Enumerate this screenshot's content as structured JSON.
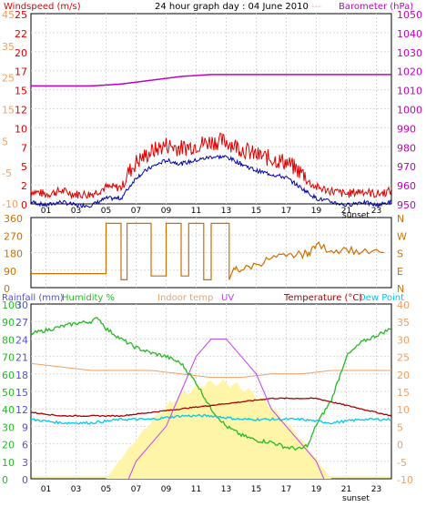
{
  "title": "24 hour graph day : 04 June 2010",
  "legend_windspeed": "Windspeed (m/s)",
  "legend_barometer": "Barometer (hPa)",
  "legend_rainfall": "Rainfall (mm)",
  "legend_humidity": "Humidity %",
  "legend_indoor": "Indoor temp",
  "legend_uv": "UV",
  "legend_temperature": "Temperature (°C)",
  "legend_dewpoint": "Dew Point",
  "sunset_label": "sunset",
  "hour_ticks": [
    "01",
    "03",
    "05",
    "07",
    "09",
    "11",
    "13",
    "15",
    "17",
    "19",
    "21",
    "23"
  ],
  "colors": {
    "windspeed": "#dd0000",
    "windgust": "#0000aa",
    "barometer": "#c000c0",
    "winddir": "#cc7000",
    "humidity": "#22bb22",
    "indoor": "#f0a060",
    "uv": "#c040f0",
    "temperature": "#aa0000",
    "dewpoint": "#00c8e8",
    "solar": "#fff5a8",
    "rain": "#5050d0"
  },
  "chart_data": [
    {
      "type": "line",
      "title": "24 hour graph day : 04 June 2010",
      "x_range": [
        0,
        24
      ],
      "y_left_label": "Windspeed (m/s)",
      "y_left_ticks_ms": [
        "25",
        "22",
        "20",
        "17",
        "15",
        "12",
        "10",
        "7",
        "5",
        "2",
        "0"
      ],
      "y_left_ticks_bft": [
        "45",
        "35",
        "25",
        "15",
        "5",
        "-5",
        "-10"
      ],
      "y_right_label": "Barometer (hPa)",
      "y_right_ticks": [
        "1050",
        "1040",
        "1030",
        "1020",
        "1010",
        "1000",
        "990",
        "980",
        "970",
        "960",
        "950"
      ],
      "barometer_ylim": [
        950,
        1050
      ],
      "windspeed_ylim": [
        -10,
        45
      ],
      "series": [
        {
          "name": "Windspeed (m/s)",
          "x": [
            0,
            1,
            2,
            3,
            4,
            5,
            6,
            7,
            8,
            9,
            10,
            11,
            12,
            13,
            14,
            15,
            16,
            17,
            18,
            19,
            20,
            21,
            22,
            23,
            24
          ],
          "values": [
            -7,
            -8,
            -7,
            -8,
            -8,
            -6,
            -6,
            0,
            3,
            5,
            4,
            5,
            6,
            6,
            4,
            2,
            1,
            0,
            -3,
            -6,
            -7,
            -8,
            -7,
            -8,
            -7
          ]
        },
        {
          "name": "Barometer (hPa)",
          "x": [
            0,
            2,
            4,
            6,
            8,
            10,
            12,
            14,
            16,
            18,
            20,
            22,
            24
          ],
          "values": [
            1012,
            1012,
            1012,
            1013,
            1015,
            1017,
            1018,
            1018,
            1018,
            1018,
            1018,
            1018,
            1018
          ]
        }
      ]
    },
    {
      "type": "line",
      "y_left_ticks": [
        "360",
        "270",
        "180",
        "90",
        "0"
      ],
      "y_right_ticks": [
        "N",
        "W",
        "S",
        "E",
        "N"
      ],
      "ylim": [
        0,
        360
      ],
      "series": [
        {
          "name": "Wind direction",
          "x": [
            0,
            4.5,
            5,
            5.6,
            6,
            6.4,
            7,
            8,
            9,
            9.5,
            10,
            10.5,
            11,
            11.5,
            12,
            12.5,
            13.2,
            13.5,
            14,
            15,
            16,
            17,
            18,
            18.5,
            19,
            20,
            21,
            22,
            23.5
          ],
          "values": [
            72,
            72,
            330,
            330,
            40,
            330,
            330,
            60,
            330,
            330,
            60,
            330,
            330,
            40,
            330,
            330,
            40,
            100,
            90,
            120,
            150,
            160,
            170,
            180,
            220,
            190,
            200,
            180,
            180
          ]
        }
      ]
    },
    {
      "type": "line",
      "x_range": [
        0,
        24
      ],
      "y_left_rain_ticks": [
        "30",
        "27",
        "24",
        "21",
        "18",
        "15",
        "12",
        "9",
        "6",
        "3",
        "0"
      ],
      "y_left_humidity_ticks": [
        "100",
        "90",
        "80",
        "70",
        "60",
        "50",
        "40",
        "30",
        "20",
        "10",
        "0"
      ],
      "y_right_temp_ticks": [
        "40",
        "35",
        "30",
        "25",
        "20",
        "15",
        "10",
        "5",
        "0",
        "-5",
        "-10"
      ],
      "humidity_ylim": [
        0,
        100
      ],
      "temperature_ylim": [
        -10,
        40
      ],
      "series": [
        {
          "name": "Humidity %",
          "x": [
            0,
            1,
            2,
            3,
            4,
            4.5,
            5,
            6,
            7,
            8,
            9,
            10,
            11,
            12,
            13,
            14,
            15,
            16,
            17,
            18,
            18.5,
            19,
            20,
            21,
            22,
            23,
            24
          ],
          "values": [
            83,
            85,
            87,
            89,
            90,
            92,
            86,
            80,
            75,
            72,
            70,
            66,
            55,
            40,
            30,
            25,
            22,
            21,
            18,
            17,
            20,
            31,
            45,
            70,
            78,
            82,
            86
          ]
        },
        {
          "name": "Indoor temp",
          "x": [
            0,
            2,
            4,
            6,
            8,
            10,
            12,
            14,
            16,
            18,
            20,
            22,
            24
          ],
          "values": [
            23,
            22,
            21,
            21,
            21,
            20,
            19,
            19,
            20,
            20,
            21,
            21,
            21
          ]
        },
        {
          "name": "UV",
          "x": [
            6.5,
            7,
            8,
            9,
            10,
            11,
            12,
            13,
            14,
            15,
            16,
            17,
            18,
            19,
            19.5
          ],
          "values": [
            0,
            1,
            2,
            3,
            5,
            7,
            8,
            8,
            7,
            6,
            4,
            3,
            2,
            1,
            0
          ]
        },
        {
          "name": "Temperature (°C)",
          "x": [
            0,
            2,
            4,
            6,
            8,
            10,
            12,
            14,
            16,
            18,
            19,
            20,
            21,
            22,
            23,
            24
          ],
          "values": [
            9,
            8,
            8,
            8,
            9,
            10,
            11,
            12,
            13,
            13,
            13,
            12,
            11,
            10,
            9,
            8
          ]
        },
        {
          "name": "Dew Point",
          "x": [
            0,
            2,
            4,
            6,
            8,
            10,
            12,
            14,
            16,
            18,
            20,
            22,
            24
          ],
          "values": [
            7,
            6,
            6,
            7,
            7,
            8,
            8,
            7,
            7,
            7,
            6,
            7,
            7
          ]
        }
      ]
    }
  ]
}
